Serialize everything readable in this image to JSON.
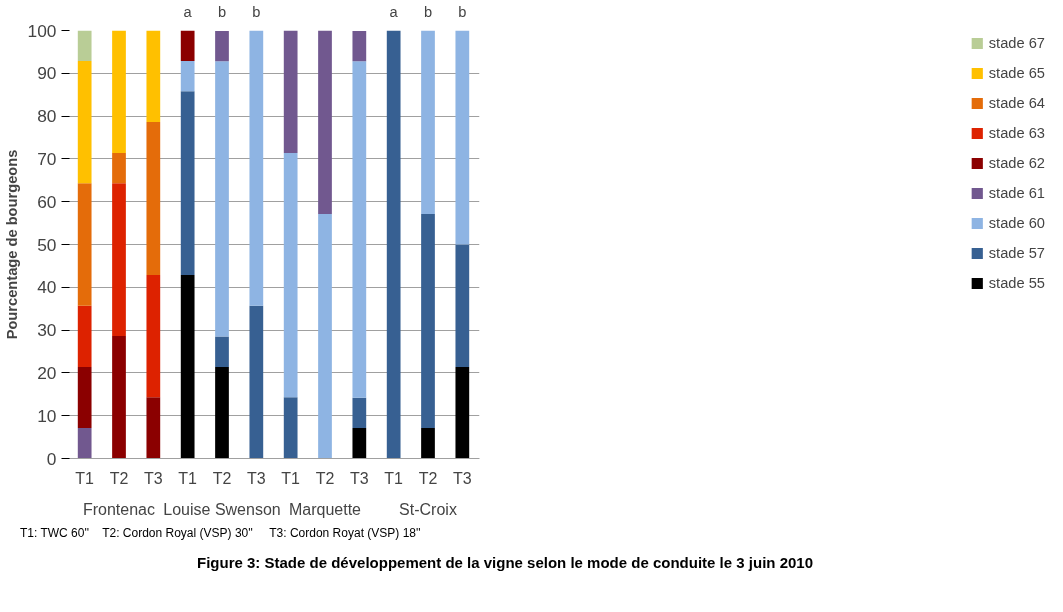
{
  "chart_data": {
    "type": "bar",
    "stacked": true,
    "title": "Figure 3: Stade de développement de la vigne selon le mode de conduite le 3 juin 2010",
    "ylabel": "Pourcentage de bourgeons",
    "categories": [
      "T1",
      "T2",
      "T3",
      "T1",
      "T2",
      "T3",
      "T1",
      "T2",
      "T3",
      "T1",
      "T2",
      "T3"
    ],
    "series": [
      {
        "name": "stade 55",
        "color": "#000000",
        "values": [
          0,
          0,
          0,
          42.9,
          21.4,
          0,
          0,
          0,
          7.1,
          0,
          7.1,
          21.4
        ]
      },
      {
        "name": "stade 57",
        "color": "#376092",
        "values": [
          0,
          0,
          0,
          42.9,
          7.1,
          35.7,
          14.3,
          0,
          7.1,
          100,
          50,
          28.6
        ]
      },
      {
        "name": "stade 60",
        "color": "#8eb4e3",
        "values": [
          0,
          0,
          0,
          7.1,
          64.3,
          64.3,
          57.1,
          57.1,
          78.6,
          0,
          42.9,
          50
        ]
      },
      {
        "name": "stade 61",
        "color": "#71588f",
        "values": [
          7.1,
          0,
          0,
          0,
          7.1,
          0,
          28.6,
          42.9,
          7.1,
          0,
          0,
          0
        ]
      },
      {
        "name": "stade 62",
        "color": "#8b0000",
        "values": [
          14.3,
          28.6,
          14.3,
          7.1,
          0,
          0,
          0,
          0,
          0,
          0,
          0,
          0
        ]
      },
      {
        "name": "stade 63",
        "color": "#dd2200",
        "values": [
          14.3,
          35.7,
          28.6,
          0,
          0,
          0,
          0,
          0,
          0,
          0,
          0,
          0
        ]
      },
      {
        "name": "stade 64",
        "color": "#e46c0a",
        "values": [
          28.6,
          7.1,
          35.7,
          0,
          0,
          0,
          0,
          0,
          0,
          0,
          0,
          0
        ]
      },
      {
        "name": "stade 65",
        "color": "#ffc000",
        "values": [
          28.6,
          28.6,
          21.4,
          0,
          0,
          0,
          0,
          0,
          0,
          0,
          0,
          0
        ]
      },
      {
        "name": "stade 67",
        "color": "#b9cd96",
        "values": [
          7.1,
          0,
          0,
          0,
          0,
          0,
          0,
          0,
          0,
          0,
          0,
          0
        ]
      }
    ],
    "ylim": [
      0,
      100
    ],
    "yticks": [
      0,
      10,
      20,
      30,
      40,
      50,
      60,
      70,
      80,
      90,
      100
    ],
    "grid": "y",
    "legend": "right",
    "annotations": [
      "a",
      "b",
      "b",
      "a",
      "b",
      "b",
      "Frontenac",
      "Louise Swenson",
      "Marquette",
      "St-Croix",
      "T1: TWC 60''    T2: Cordon Royal (VSP) 30''     T3: Cordon Royat (VSP) 18''"
    ]
  }
}
